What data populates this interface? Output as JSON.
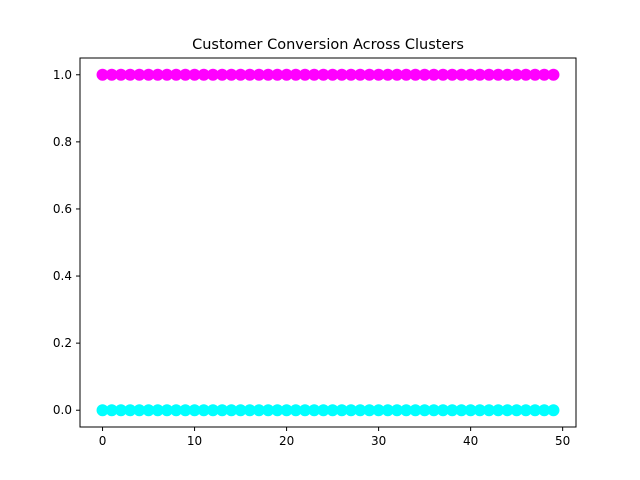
{
  "chart_data": {
    "type": "scatter",
    "title": "Customer Conversion Across Clusters",
    "xlabel": "",
    "ylabel": "",
    "xlim": [
      -2.45,
      51.45
    ],
    "ylim": [
      -0.05,
      1.05
    ],
    "xticks": [
      0,
      10,
      20,
      30,
      40,
      50
    ],
    "xtick_labels": [
      "0",
      "10",
      "20",
      "30",
      "40",
      "50"
    ],
    "yticks": [
      0.0,
      0.2,
      0.4,
      0.6,
      0.8,
      1.0
    ],
    "ytick_labels": [
      "0.0",
      "0.2",
      "0.4",
      "0.6",
      "0.8",
      "1.0"
    ],
    "grid": false,
    "series": [
      {
        "color": "#ff00ff",
        "x": [
          0,
          1,
          2,
          3,
          4,
          5,
          6,
          7,
          8,
          9,
          10,
          11,
          12,
          13,
          14,
          15,
          16,
          17,
          18,
          19,
          20,
          21,
          22,
          23,
          24,
          25,
          26,
          27,
          28,
          29,
          30,
          31,
          32,
          33,
          34,
          35,
          36,
          37,
          38,
          39,
          40,
          41,
          42,
          43,
          44,
          45,
          46,
          47,
          48,
          49
        ],
        "y": [
          1,
          1,
          1,
          1,
          1,
          1,
          1,
          1,
          1,
          1,
          1,
          1,
          1,
          1,
          1,
          1,
          1,
          1,
          1,
          1,
          1,
          1,
          1,
          1,
          1,
          1,
          1,
          1,
          1,
          1,
          1,
          1,
          1,
          1,
          1,
          1,
          1,
          1,
          1,
          1,
          1,
          1,
          1,
          1,
          1,
          1,
          1,
          1,
          1,
          1
        ]
      },
      {
        "color": "#00ffff",
        "x": [
          0,
          1,
          2,
          3,
          4,
          5,
          6,
          7,
          8,
          9,
          10,
          11,
          12,
          13,
          14,
          15,
          16,
          17,
          18,
          19,
          20,
          21,
          22,
          23,
          24,
          25,
          26,
          27,
          28,
          29,
          30,
          31,
          32,
          33,
          34,
          35,
          36,
          37,
          38,
          39,
          40,
          41,
          42,
          43,
          44,
          45,
          46,
          47,
          48,
          49
        ],
        "y": [
          0,
          0,
          0,
          0,
          0,
          0,
          0,
          0,
          0,
          0,
          0,
          0,
          0,
          0,
          0,
          0,
          0,
          0,
          0,
          0,
          0,
          0,
          0,
          0,
          0,
          0,
          0,
          0,
          0,
          0,
          0,
          0,
          0,
          0,
          0,
          0,
          0,
          0,
          0,
          0,
          0,
          0,
          0,
          0,
          0,
          0,
          0,
          0,
          0,
          0
        ]
      }
    ]
  }
}
